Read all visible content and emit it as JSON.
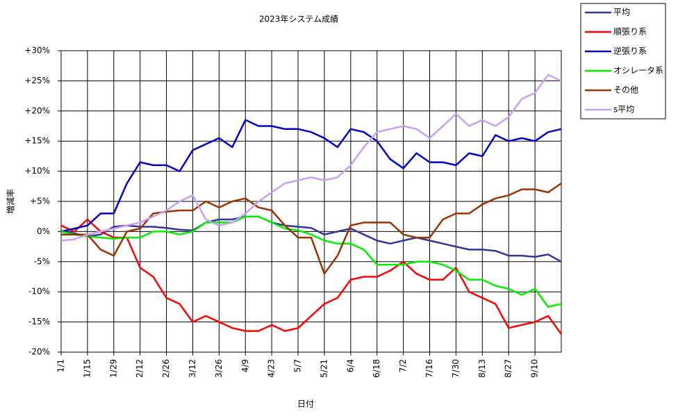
{
  "chart_data": {
    "type": "line",
    "title": "2023年システム成績",
    "x_label": "日付",
    "y_label": "増減率",
    "categories": [
      "1/1",
      null,
      "1/15",
      null,
      "1/29",
      null,
      "2/12",
      null,
      "2/26",
      null,
      "3/12",
      null,
      "3/26",
      null,
      "4/9",
      null,
      "4/23",
      null,
      "5/7",
      null,
      "5/21",
      null,
      "6/4",
      null,
      "6/18",
      null,
      "7/2",
      null,
      "7/16",
      null,
      "7/30",
      null,
      "8/13",
      null,
      "8/27",
      null,
      "9/10",
      null,
      null
    ],
    "ylim": [
      -20,
      30
    ],
    "yticks": [
      {
        "value": -20,
        "label": "-20%"
      },
      {
        "value": -15,
        "label": "-15%"
      },
      {
        "value": -10,
        "label": "-10%"
      },
      {
        "value": -5,
        "label": "-5%"
      },
      {
        "value": 0,
        "label": "0%"
      },
      {
        "value": 5,
        "label": "+5%"
      },
      {
        "value": 10,
        "label": "+10%"
      },
      {
        "value": 15,
        "label": "+15%"
      },
      {
        "value": 20,
        "label": "+20%"
      },
      {
        "value": 25,
        "label": "+25%"
      },
      {
        "value": 30,
        "label": "+30%"
      }
    ],
    "grid": true,
    "legend": "outside-top-right",
    "series": [
      {
        "name": "平均",
        "color": "#333399",
        "values": [
          0,
          -0.3,
          -0.8,
          -0.5,
          0.8,
          1,
          0.8,
          0.8,
          0.6,
          0.3,
          0.2,
          1.5,
          2,
          2,
          2.5,
          2.5,
          1.5,
          1,
          0.8,
          0.6,
          -0.5,
          0,
          0.5,
          -0.5,
          -1.5,
          -2,
          -1.5,
          -1,
          -1.5,
          -2,
          -2.5,
          -3,
          -3,
          -3.2,
          -4,
          -4,
          -4.2,
          -3.8,
          -5
        ]
      },
      {
        "name": "順張り系",
        "color": "#ff0000",
        "values": [
          1,
          0,
          2,
          0,
          -1,
          -1,
          -6,
          -7.5,
          -11,
          -12,
          -15,
          -14,
          -15,
          -16,
          -16.5,
          -16.5,
          -15.5,
          -16.5,
          -16,
          -14,
          -12,
          -11,
          -8,
          -7.5,
          -7.5,
          -6.5,
          -5,
          -7,
          -8,
          -8,
          -6,
          -10,
          -11,
          -12,
          -16,
          -15.5,
          -15,
          -14,
          -17
        ]
      },
      {
        "name": "逆張り系",
        "color": "#0000cc",
        "values": [
          0,
          0.5,
          1,
          3,
          3,
          8,
          11.5,
          11,
          11,
          10,
          13.5,
          14.5,
          15.5,
          14,
          18.5,
          17.5,
          17.5,
          17,
          17,
          16.5,
          15.5,
          14,
          17,
          16.5,
          15,
          12,
          10.5,
          13,
          11.5,
          11.5,
          11,
          13,
          12.5,
          16,
          15,
          15.5,
          15,
          16.5,
          17
        ]
      },
      {
        "name": "オシレータ系",
        "color": "#00ee00",
        "values": [
          0,
          -0.5,
          -0.8,
          -1,
          -1.2,
          -1,
          -1,
          0,
          0,
          -0.5,
          0,
          1.5,
          1.5,
          1.5,
          2.5,
          2.5,
          1.5,
          0.5,
          0.2,
          -0.5,
          -1.5,
          -2,
          -2,
          -3,
          -5.5,
          -5.5,
          -5.5,
          -5,
          -5,
          -5.5,
          -6.5,
          -8,
          -8,
          -9,
          -9.5,
          -10.5,
          -9.5,
          -12.5,
          -12
        ]
      },
      {
        "name": "その他",
        "color": "#993300",
        "values": [
          -0.5,
          -0.5,
          -0.5,
          -3,
          -4,
          0,
          0.5,
          3,
          3.3,
          3.5,
          3.5,
          5,
          4,
          5,
          5.5,
          4,
          3.5,
          1,
          -1,
          -1,
          -7,
          -4,
          1,
          1.5,
          1.5,
          1.5,
          -0.5,
          -1,
          -1,
          2,
          3,
          3,
          4.5,
          5.5,
          6,
          7,
          7,
          6.5,
          8
        ]
      },
      {
        "name": "s平均",
        "color": "#c8a0f0",
        "values": [
          -1.5,
          -1.3,
          -0.5,
          0,
          0.5,
          1,
          1.5,
          2.5,
          3.5,
          5,
          6,
          2,
          1,
          1.5,
          3,
          5,
          6.5,
          8,
          8.5,
          9,
          8.5,
          9,
          11,
          14,
          16.5,
          17,
          17.5,
          17,
          15.5,
          17.5,
          19.5,
          17.5,
          18.5,
          17.5,
          19,
          22,
          23,
          26,
          25
        ]
      }
    ]
  }
}
